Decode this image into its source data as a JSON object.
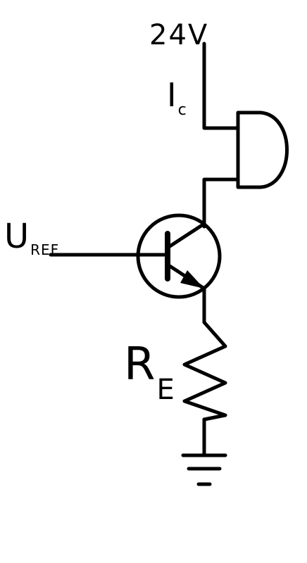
{
  "labels": {
    "supply": "24V",
    "collector_current": {
      "main": "I",
      "sub": "c"
    },
    "reference_voltage": {
      "main": "U",
      "sub": "REF"
    },
    "emitter_resistor": {
      "main": "R",
      "sub": "E"
    }
  }
}
